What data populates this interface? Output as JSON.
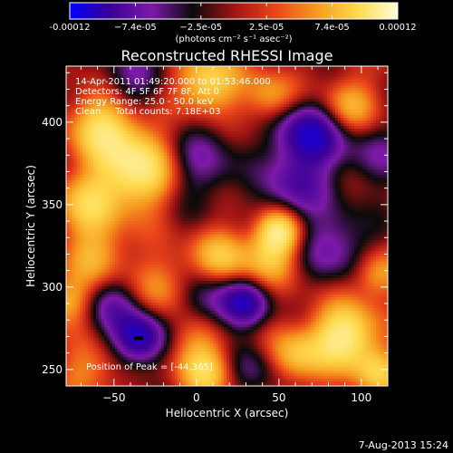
{
  "chart_data": {
    "type": "heatmap",
    "title": "Reconstructed RHESSI Image",
    "xlabel": "Heliocentric X (arcsec)",
    "ylabel": "Heliocentric Y (arcsec)",
    "xlim": [
      -79,
      116
    ],
    "ylim": [
      240,
      434
    ],
    "x_ticks": [
      -50,
      0,
      50,
      100
    ],
    "y_ticks": [
      250,
      300,
      350,
      400
    ],
    "colorbar": {
      "min": -0.00012,
      "max": 0.00012,
      "tick_labels": [
        "-0.00012",
        "−7.4e-05",
        "−2.5e-05",
        "2.5e-05",
        "7.4e-05",
        "0.00012"
      ],
      "units_label": "(photons cm⁻² s⁻¹ asec⁻²)"
    },
    "colormap_stops": [
      "#0000ff",
      "#3a0096",
      "#7d1aa8",
      "#0a0a0a",
      "#a01414",
      "#e8441a",
      "#f59a1e",
      "#ffd94c",
      "#ffffd8"
    ],
    "annotations": [
      "14-Apr-2011 01:49:20.000 to 01:53:46.000",
      "Detectors: 4F 5F 6F 7F 8F, Att 0",
      "Energy Range: 25.0 - 50.0 keV",
      "Clean     Total counts: 7.18E+03"
    ],
    "peak_label": "Position of Peak = [-44,365]",
    "peak_position": [
      -44,
      365
    ],
    "minimum_marker": [
      -35,
      269
    ],
    "blobs": [
      {
        "x": -35,
        "y": 372,
        "amp": 1.0,
        "sigma": 17
      },
      {
        "x": -57,
        "y": 398,
        "amp": 0.75,
        "sigma": 14
      },
      {
        "x": -66,
        "y": 350,
        "amp": 0.6,
        "sigma": 14
      },
      {
        "x": 7,
        "y": 424,
        "amp": 0.8,
        "sigma": 13
      },
      {
        "x": 45,
        "y": 415,
        "amp": 0.5,
        "sigma": 11
      },
      {
        "x": 92,
        "y": 410,
        "amp": 0.55,
        "sigma": 12
      },
      {
        "x": 50,
        "y": 334,
        "amp": 0.85,
        "sigma": 9
      },
      {
        "x": 44,
        "y": 318,
        "amp": 0.55,
        "sigma": 12
      },
      {
        "x": 15,
        "y": 318,
        "amp": 0.6,
        "sigma": 12
      },
      {
        "x": -18,
        "y": 300,
        "amp": 0.45,
        "sigma": 14
      },
      {
        "x": -60,
        "y": 318,
        "amp": 0.5,
        "sigma": 13
      },
      {
        "x": -78,
        "y": 292,
        "amp": 0.5,
        "sigma": 10
      },
      {
        "x": 0,
        "y": 270,
        "amp": 0.45,
        "sigma": 13
      },
      {
        "x": 6,
        "y": 248,
        "amp": 0.65,
        "sigma": 11
      },
      {
        "x": 90,
        "y": 270,
        "amp": 1.0,
        "sigma": 14
      },
      {
        "x": 60,
        "y": 258,
        "amp": 0.6,
        "sigma": 12
      },
      {
        "x": 110,
        "y": 308,
        "amp": 0.55,
        "sigma": 10
      },
      {
        "x": 110,
        "y": 248,
        "amp": 0.6,
        "sigma": 10
      },
      {
        "x": -65,
        "y": 250,
        "amp": 0.4,
        "sigma": 12
      },
      {
        "x": -35,
        "y": 269,
        "amp": -1.0,
        "sigma": 11
      },
      {
        "x": 68,
        "y": 392,
        "amp": -1.0,
        "sigma": 14
      },
      {
        "x": 60,
        "y": 360,
        "amp": -0.55,
        "sigma": 14
      },
      {
        "x": 0,
        "y": 375,
        "amp": -0.45,
        "sigma": 18
      },
      {
        "x": -40,
        "y": 425,
        "amp": -0.4,
        "sigma": 14
      },
      {
        "x": 5,
        "y": 290,
        "amp": -0.6,
        "sigma": 14
      },
      {
        "x": 30,
        "y": 290,
        "amp": -0.75,
        "sigma": 10
      },
      {
        "x": 85,
        "y": 325,
        "amp": -0.5,
        "sigma": 15
      },
      {
        "x": 108,
        "y": 380,
        "amp": -0.35,
        "sigma": 14
      },
      {
        "x": -50,
        "y": 290,
        "amp": -0.45,
        "sigma": 12
      },
      {
        "x": 35,
        "y": 250,
        "amp": -0.35,
        "sigma": 12
      }
    ],
    "grid": false,
    "colorbar_position": "top"
  },
  "footer": {
    "timestamp": "7-Aug-2013 15:24"
  }
}
